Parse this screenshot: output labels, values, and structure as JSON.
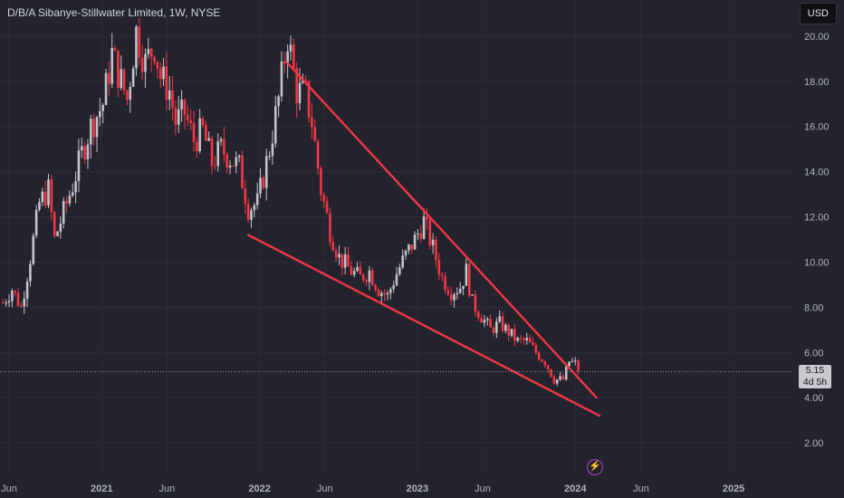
{
  "header": {
    "title": "D/B/A Sibanye-Stillwater Limited, 1W, NYSE",
    "currency": "USD"
  },
  "price_badge": {
    "price": "5.15",
    "countdown": "4d 5h"
  },
  "indicator_icon": "lightning-icon",
  "colors": {
    "up": "#c3c4c9",
    "down": "#f23645",
    "trendline": "#f23645",
    "background": "#22232d"
  },
  "chart_data": {
    "type": "candlestick",
    "title": "D/B/A Sibanye-Stillwater Limited, 1W, NYSE",
    "ylim": [
      0.6,
      21.6
    ],
    "xlim": [
      "2020-05-11",
      "2025-05-19"
    ],
    "yticks": [
      "2.00",
      "4.00",
      "6.00",
      "8.00",
      "10.00",
      "12.00",
      "14.00",
      "16.00",
      "18.00",
      "20.00"
    ],
    "xticks": [
      {
        "label": "Jun",
        "date": "2020-06-01"
      },
      {
        "label": "2021",
        "date": "2021-01-01"
      },
      {
        "label": "Jun",
        "date": "2021-06-01"
      },
      {
        "label": "2022",
        "date": "2022-01-01"
      },
      {
        "label": "Jun",
        "date": "2022-06-01"
      },
      {
        "label": "2023",
        "date": "2023-01-01"
      },
      {
        "label": "Jun",
        "date": "2023-06-01"
      },
      {
        "label": "2024",
        "date": "2024-01-01"
      },
      {
        "label": "Jun",
        "date": "2024-06-01"
      },
      {
        "label": "2025",
        "date": "2025-01-01"
      }
    ],
    "close_path": [
      [
        "2020-05-18",
        8.2
      ],
      [
        "2020-06-08",
        8.8
      ],
      [
        "2020-06-29",
        8.0
      ],
      [
        "2020-07-20",
        10.2
      ],
      [
        "2020-08-10",
        12.6
      ],
      [
        "2020-08-31",
        13.2
      ],
      [
        "2020-09-14",
        11.0
      ],
      [
        "2020-10-05",
        12.2
      ],
      [
        "2020-10-26",
        13.4
      ],
      [
        "2020-11-16",
        14.8
      ],
      [
        "2020-12-07",
        16.0
      ],
      [
        "2021-01-04",
        17.0
      ],
      [
        "2021-01-25",
        19.2
      ],
      [
        "2021-02-08",
        18.4
      ],
      [
        "2021-03-01",
        17.2
      ],
      [
        "2021-03-22",
        20.2
      ],
      [
        "2021-04-12",
        18.8
      ],
      [
        "2021-05-03",
        19.6
      ],
      [
        "2021-05-17",
        18.2
      ],
      [
        "2021-06-07",
        17.6
      ],
      [
        "2021-06-21",
        16.2
      ],
      [
        "2021-07-12",
        16.6
      ],
      [
        "2021-08-02",
        15.4
      ],
      [
        "2021-08-23",
        15.8
      ],
      [
        "2021-09-13",
        14.4
      ],
      [
        "2021-10-04",
        15.0
      ],
      [
        "2021-10-25",
        14.6
      ],
      [
        "2021-11-15",
        14.2
      ],
      [
        "2021-12-06",
        12.4
      ],
      [
        "2021-12-27",
        12.6
      ],
      [
        "2022-01-24",
        15.0
      ],
      [
        "2022-02-14",
        17.2
      ],
      [
        "2022-03-07",
        20.0
      ],
      [
        "2022-03-28",
        17.6
      ],
      [
        "2022-04-18",
        17.4
      ],
      [
        "2022-05-02",
        16.2
      ],
      [
        "2022-05-23",
        13.2
      ],
      [
        "2022-06-13",
        11.4
      ],
      [
        "2022-07-04",
        10.2
      ],
      [
        "2022-08-01",
        9.6
      ],
      [
        "2022-08-22",
        9.3
      ],
      [
        "2022-09-12",
        9.6
      ],
      [
        "2022-10-03",
        8.8
      ],
      [
        "2022-10-24",
        8.5
      ],
      [
        "2022-11-14",
        9.5
      ],
      [
        "2022-12-05",
        10.3
      ],
      [
        "2022-12-26",
        11.0
      ],
      [
        "2023-01-16",
        11.8
      ],
      [
        "2023-02-06",
        10.6
      ],
      [
        "2023-02-27",
        9.3
      ],
      [
        "2023-03-20",
        8.7
      ],
      [
        "2023-04-10",
        8.9
      ],
      [
        "2023-04-24",
        9.6
      ],
      [
        "2023-05-08",
        8.2
      ],
      [
        "2023-05-29",
        7.6
      ],
      [
        "2023-06-19",
        7.0
      ],
      [
        "2023-07-10",
        7.3
      ],
      [
        "2023-07-31",
        6.9
      ],
      [
        "2023-08-21",
        6.5
      ],
      [
        "2023-09-11",
        6.5
      ],
      [
        "2023-10-02",
        6.0
      ],
      [
        "2023-10-23",
        5.6
      ],
      [
        "2023-11-13",
        4.8
      ],
      [
        "2023-12-04",
        4.8
      ],
      [
        "2023-12-18",
        5.6
      ],
      [
        "2024-01-01",
        5.5
      ],
      [
        "2024-01-08",
        5.15
      ]
    ],
    "last_price": 5.15,
    "trendlines": [
      {
        "name": "upper",
        "from": [
          "2022-03-07",
          18.8
        ],
        "to": [
          "2024-02-19",
          4.0
        ]
      },
      {
        "name": "lower",
        "from": [
          "2021-12-06",
          11.2
        ],
        "to": [
          "2024-02-26",
          3.2
        ]
      }
    ],
    "grid": true,
    "axis_position": "right"
  }
}
